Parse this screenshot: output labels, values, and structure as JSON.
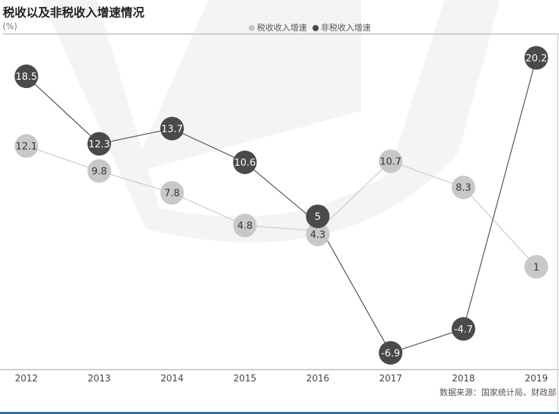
{
  "chart_data": {
    "type": "line",
    "title": "税收以及非税收入增速情况",
    "ylabel": "(%)",
    "x": [
      "2012",
      "2013",
      "2014",
      "2015",
      "2016",
      "2017",
      "2018",
      "2019"
    ],
    "series": [
      {
        "name": "税收收入增速",
        "color": "#c8c8c8",
        "values": [
          12.1,
          9.8,
          7.8,
          4.8,
          4.3,
          10.7,
          8.3,
          1
        ]
      },
      {
        "name": "非税收入增速",
        "color": "#4a4a4c",
        "values": [
          18.5,
          12.3,
          13.7,
          10.6,
          5,
          -6.9,
          -4.7,
          20.2
        ]
      }
    ],
    "legend_position": "top-center",
    "grid": false
  },
  "source": "数据来源：国家统计局、财政部"
}
